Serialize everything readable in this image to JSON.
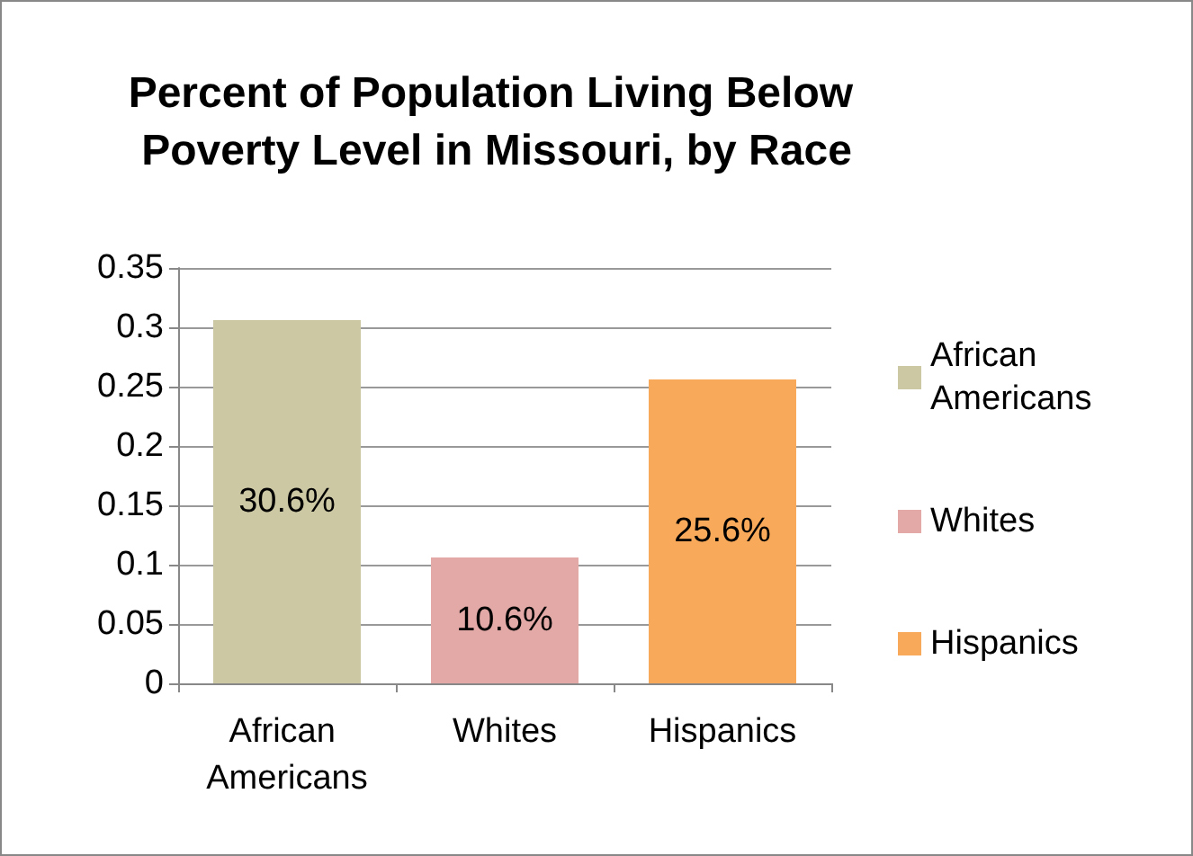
{
  "chart_data": {
    "type": "bar",
    "title": "Percent of Population Living Below Poverty Level in Missouri, by Race",
    "categories": [
      "African Americans",
      "Whites",
      "Hispanics"
    ],
    "series": [
      {
        "name": "African Americans",
        "color": "#cdc8a4",
        "values": [
          0.306,
          null,
          null
        ],
        "value_labels": [
          "30.6%",
          null,
          null
        ]
      },
      {
        "name": "Whites",
        "color": "#e2a9a7",
        "values": [
          null,
          0.106,
          null
        ],
        "value_labels": [
          null,
          "10.6%",
          null
        ]
      },
      {
        "name": "Hispanics",
        "color": "#f8a95a",
        "values": [
          null,
          null,
          0.256
        ],
        "value_labels": [
          null,
          null,
          "25.6%"
        ]
      }
    ],
    "ylim": [
      0,
      0.35
    ],
    "yticks": [
      0,
      0.05,
      0.1,
      0.15,
      0.2,
      0.25,
      0.3,
      0.35
    ],
    "grid": "y",
    "legend": "right"
  }
}
